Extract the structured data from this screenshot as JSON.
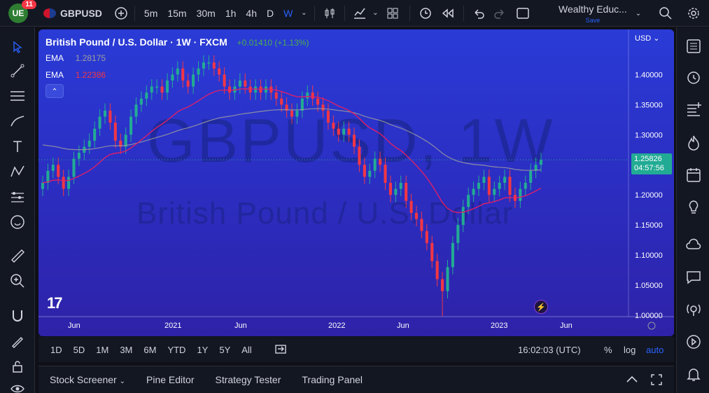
{
  "topbar": {
    "notifications": "11",
    "symbol": "GBPUSD",
    "intervals": [
      "5m",
      "15m",
      "30m",
      "1h",
      "4h",
      "D",
      "W"
    ],
    "active_interval": "W",
    "account_name": "Wealthy Educ...",
    "save_label": "Save"
  },
  "chart": {
    "title": "British Pound / U.S. Dollar · 1W · FXCM",
    "change": "+0.01410 (+1.13%)",
    "ema1_label": "EMA",
    "ema1_value": "1.28175",
    "ema2_label": "EMA",
    "ema2_value": "1.22386",
    "watermark_symbol": "GBPUSD, 1W",
    "watermark_name": "British Pound / U.S. Dollar",
    "currency": "USD",
    "last_price": "1.25826",
    "countdown": "04:57:56",
    "price_labels": [
      "1.40000",
      "1.35000",
      "1.30000",
      "1.20000",
      "1.15000",
      "1.10000",
      "1.05000",
      "1.00000"
    ],
    "time_labels": [
      "Jun",
      "2021",
      "Jun",
      "2022",
      "Jun",
      "2023",
      "Jun"
    ],
    "colors": {
      "up": "#22ab94",
      "down": "#f23645",
      "ema_fast": "#e91e63",
      "ema_slow": "#9e9e9e",
      "background": "#2a3bd6"
    }
  },
  "chart_data": {
    "type": "candlestick",
    "title": "British Pound / U.S. Dollar · 1W · FXCM",
    "ylim": [
      1.0,
      1.44
    ],
    "x_ticks": [
      "Jun",
      "2021",
      "Jun",
      "2022",
      "Jun",
      "2023",
      "Jun"
    ],
    "close_series": [
      1.22,
      1.24,
      1.25,
      1.23,
      1.21,
      1.23,
      1.26,
      1.27,
      1.28,
      1.29,
      1.31,
      1.33,
      1.34,
      1.32,
      1.29,
      1.28,
      1.3,
      1.33,
      1.35,
      1.36,
      1.37,
      1.38,
      1.38,
      1.37,
      1.39,
      1.4,
      1.41,
      1.39,
      1.38,
      1.4,
      1.41,
      1.42,
      1.42,
      1.41,
      1.4,
      1.38,
      1.37,
      1.38,
      1.39,
      1.38,
      1.37,
      1.38,
      1.37,
      1.38,
      1.37,
      1.36,
      1.35,
      1.34,
      1.33,
      1.34,
      1.36,
      1.37,
      1.36,
      1.35,
      1.34,
      1.32,
      1.31,
      1.3,
      1.31,
      1.3,
      1.28,
      1.25,
      1.23,
      1.24,
      1.26,
      1.25,
      1.22,
      1.2,
      1.21,
      1.22,
      1.19,
      1.17,
      1.16,
      1.14,
      1.12,
      1.09,
      1.06,
      1.04,
      1.08,
      1.12,
      1.15,
      1.18,
      1.2,
      1.21,
      1.22,
      1.23,
      1.2,
      1.21,
      1.22,
      1.23,
      1.2,
      1.19,
      1.21,
      1.22,
      1.24,
      1.25,
      1.258
    ],
    "ema_fast": {
      "name": "EMA",
      "last": 1.22386
    },
    "ema_slow": {
      "name": "EMA",
      "last": 1.28175
    },
    "last_price": 1.25826
  },
  "ranges": {
    "items": [
      "1D",
      "5D",
      "1M",
      "3M",
      "6M",
      "YTD",
      "1Y",
      "5Y",
      "All"
    ],
    "clock": "16:02:03 (UTC)",
    "pct": "%",
    "log": "log",
    "auto": "auto"
  },
  "bottom_tabs": [
    "Stock Screener",
    "Pine Editor",
    "Strategy Tester",
    "Trading Panel"
  ]
}
